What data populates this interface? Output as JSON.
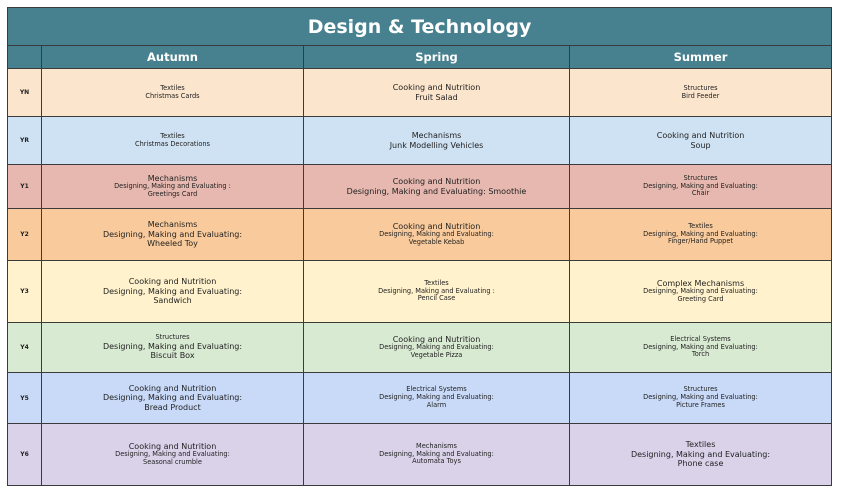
{
  "title": "Design & Technology",
  "colors": {
    "header_bg": "#47808f",
    "YN": "#fce5cd",
    "YR": "#cfe2f3",
    "Y1": "#e6b8af",
    "Y2": "#f9cb9c",
    "Y3": "#fff2cc",
    "Y4": "#d9ead3",
    "Y5": "#c9daf8",
    "Y6": "#d9d2e9"
  },
  "headers": {
    "corner": "",
    "autumn": "Autumn",
    "spring": "Spring",
    "summer": "Summer"
  },
  "rows": [
    {
      "year": "YN",
      "autumn": [
        "Textiles",
        "Christmas Cards"
      ],
      "spring": [
        "Cooking and Nutrition",
        "Fruit Salad"
      ],
      "summer": [
        "Structures",
        "Bird Feeder"
      ]
    },
    {
      "year": "YR",
      "autumn": [
        "Textiles",
        "Christmas Decorations"
      ],
      "spring": [
        "Mechanisms",
        "Junk Modelling Vehicles"
      ],
      "summer": [
        "Cooking and Nutrition",
        "Soup"
      ]
    },
    {
      "year": "Y1",
      "autumn": [
        "Mechanisms",
        "Designing, Making and Evaluating :",
        "Greetings Card"
      ],
      "spring": [
        "Cooking and Nutrition",
        "Designing, Making and Evaluating: Smoothie"
      ],
      "summer": [
        "Structures",
        "Designing, Making and Evaluating:",
        "Chair"
      ]
    },
    {
      "year": "Y2",
      "autumn": [
        "Mechanisms",
        "Designing, Making and Evaluating:",
        "Wheeled Toy"
      ],
      "spring": [
        "Cooking and Nutrition",
        "Designing, Making and Evaluating:",
        "Vegetable Kebab"
      ],
      "summer": [
        "Textiles",
        "Designing, Making and Evaluating:",
        "Finger/Hand Puppet"
      ]
    },
    {
      "year": "Y3",
      "autumn": [
        "Cooking and Nutrition",
        "Designing, Making and Evaluating:",
        "Sandwich"
      ],
      "spring": [
        "Textiles",
        "Designing, Making and Evaluating :",
        "Pencil Case"
      ],
      "summer": [
        "Complex Mechanisms",
        "Designing, Making and Evaluating:",
        "Greeting Card"
      ]
    },
    {
      "year": "Y4",
      "autumn": [
        "Structures",
        "Designing, Making and Evaluating:",
        "Biscuit Box"
      ],
      "spring": [
        "Cooking and Nutrition",
        "Designing, Making and Evaluating:",
        "Vegetable Pizza"
      ],
      "summer": [
        "Electrical Systems",
        "Designing, Making and Evaluating:",
        "Torch"
      ]
    },
    {
      "year": "Y5",
      "autumn": [
        "Cooking and Nutrition",
        "Designing, Making and Evaluating:",
        "Bread Product"
      ],
      "spring": [
        "Electrical Systems",
        "Designing, Making and Evaluating:",
        "Alarm"
      ],
      "summer": [
        "Structures",
        "Designing, Making and Evaluating:",
        "Picture Frames"
      ]
    },
    {
      "year": "Y6",
      "autumn": [
        "Cooking and Nutrition",
        "Designing, Making and Evaluating:",
        "Seasonal crumble"
      ],
      "spring": [
        "Mechanisms",
        "Designing, Making and Evaluating:",
        "Automata Toys"
      ],
      "summer": [
        "Textiles",
        "Designing, Making and Evaluating:",
        "Phone case"
      ]
    }
  ]
}
